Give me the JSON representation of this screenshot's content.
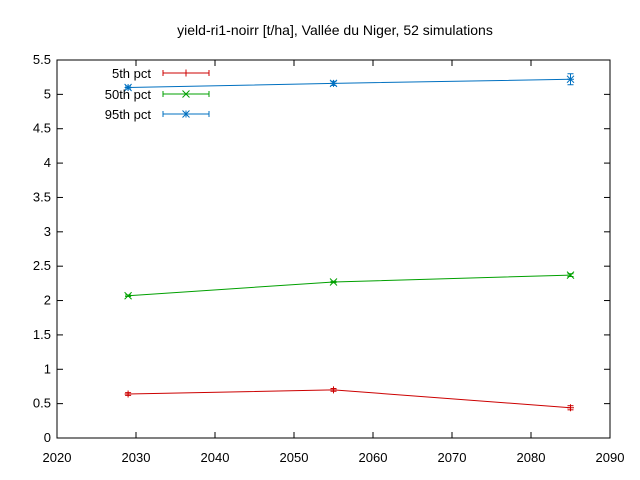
{
  "chart_data": {
    "type": "line",
    "title": "yield-ri1-noirr [t/ha], Vallée du Niger, 52 simulations",
    "xlabel": "",
    "ylabel": "",
    "xlim": [
      2020,
      2090
    ],
    "ylim": [
      0,
      5.5
    ],
    "xticks": [
      2020,
      2030,
      2040,
      2050,
      2060,
      2070,
      2080,
      2090
    ],
    "yticks": [
      0,
      0.5,
      1,
      1.5,
      2,
      2.5,
      3,
      3.5,
      4,
      4.5,
      5,
      5.5
    ],
    "x": [
      2029,
      2055,
      2085
    ],
    "series": [
      {
        "name": "5th pct",
        "color": "#cc0000",
        "marker": "plus",
        "values": [
          0.64,
          0.7,
          0.44
        ],
        "errors": [
          0.02,
          0.02,
          0.03
        ]
      },
      {
        "name": "50th pct",
        "color": "#00a000",
        "marker": "cross",
        "values": [
          2.07,
          2.27,
          2.37
        ],
        "errors": [
          0.01,
          0.01,
          0.02
        ]
      },
      {
        "name": "95th pct",
        "color": "#0070c0",
        "marker": "star",
        "values": [
          5.1,
          5.16,
          5.22
        ],
        "errors": [
          0.02,
          0.03,
          0.08
        ]
      }
    ],
    "legend_position": "top-left",
    "grid": false
  }
}
